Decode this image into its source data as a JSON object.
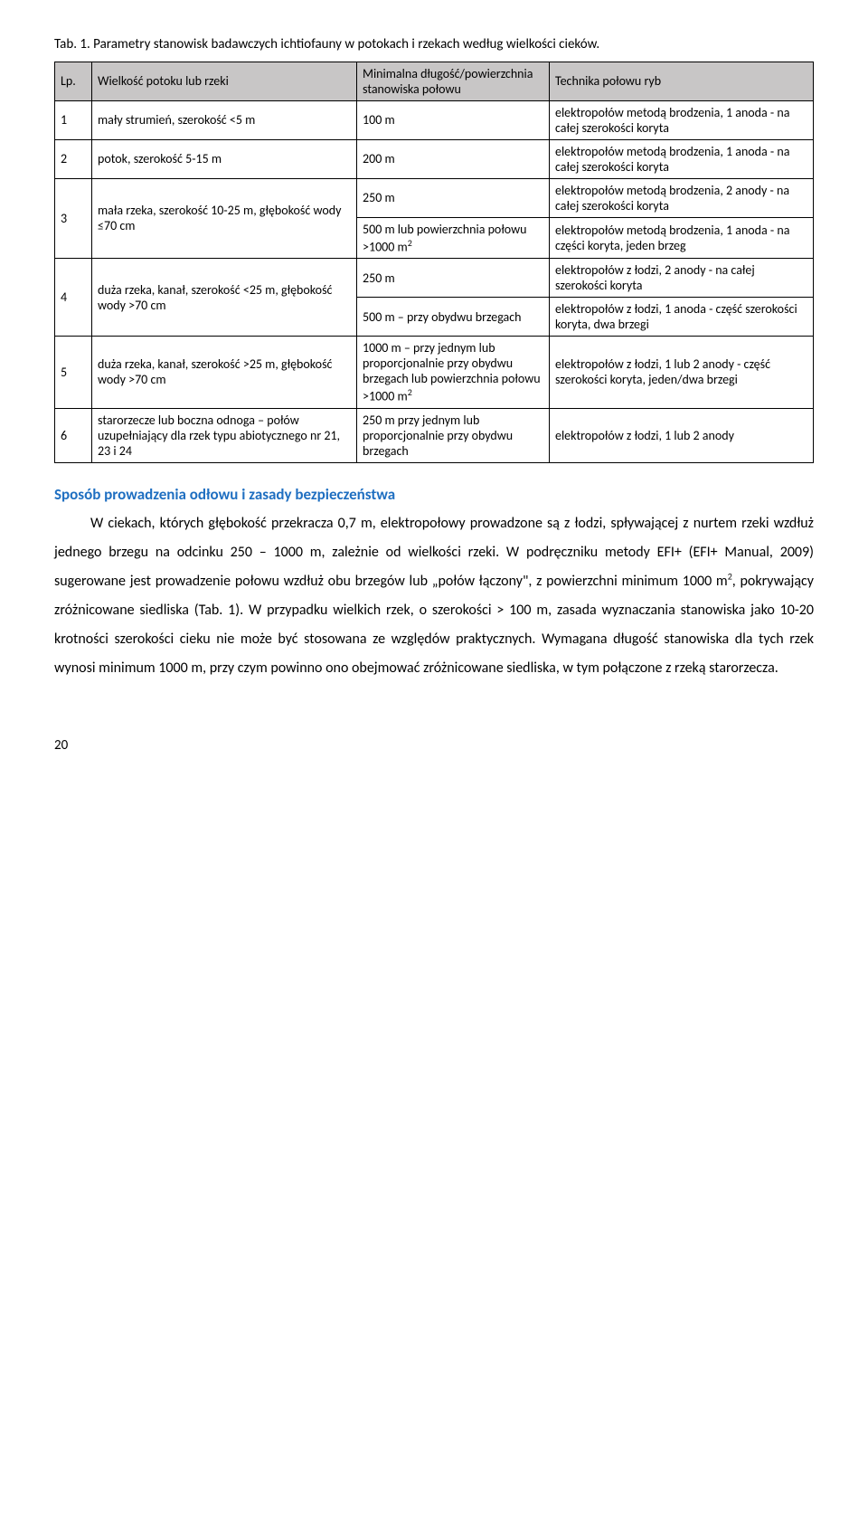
{
  "table_caption": "Tab. 1. Parametry stanowisk badawczych ichtiofauny w potokach i rzekach według wielkości cieków.",
  "headers": {
    "lp": "Lp.",
    "name": "Wielkość potoku lub rzeki",
    "min": "Minimalna długość/powierzchnia stanowiska połowu",
    "tech": "Technika połowu ryb"
  },
  "rows": {
    "r1": {
      "lp": "1",
      "name": "mały strumień, szerokość <5 m",
      "min": "100 m",
      "tech": "elektropołów metodą brodzenia, 1 anoda - na całej szerokości koryta"
    },
    "r2": {
      "lp": "2",
      "name": "potok, szerokość 5-15 m",
      "min": "200 m",
      "tech": "elektropołów metodą brodzenia, 1 anoda - na całej szerokości koryta"
    },
    "r3": {
      "lp": "3",
      "name": "mała rzeka, szerokość 10-25 m, głębokość wody ≤70 cm",
      "min_a": "250 m",
      "tech_a": "elektropołów metodą brodzenia, 2 anody - na całej szerokości koryta",
      "min_b_pre": "500 m lub powierzchnia połowu >1000 m",
      "min_b_sup": "2",
      "tech_b": "elektropołów metodą brodzenia, 1 anoda - na części koryta, jeden brzeg"
    },
    "r4": {
      "lp": "4",
      "name": "duża rzeka, kanał, szerokość <25 m, głębokość wody >70 cm",
      "min_a": "250 m",
      "tech_a": "elektropołów z łodzi, 2 anody - na całej szerokości koryta",
      "min_b": "500 m – przy obydwu brzegach",
      "tech_b": "elektropołów z łodzi, 1 anoda - część szerokości koryta, dwa brzegi"
    },
    "r5": {
      "lp": "5",
      "name": "duża rzeka, kanał, szerokość >25 m, głębokość wody >70 cm",
      "min_pre": "1000 m – przy jednym lub proporcjonalnie przy obydwu brzegach lub powierzchnia połowu >1000 m",
      "min_sup": "2",
      "tech": "elektropołów z łodzi, 1 lub 2 anody - część szerokości koryta, jeden/dwa brzegi"
    },
    "r6": {
      "lp": "6",
      "name": "starorzecze lub boczna odnoga – połów uzupełniający dla rzek typu abiotycznego nr 21, 23 i 24",
      "min": "250 m przy jednym lub proporcjonalnie przy obydwu brzegach",
      "tech": "elektropołów z łodzi, 1 lub 2 anody"
    }
  },
  "section_title": "Sposób prowadzenia odłowu i zasady bezpieczeństwa",
  "para_pre": "W ciekach, których głębokość przekracza 0,7 m, elektropołowy prowadzone są z łodzi, spływającej z nurtem rzeki wzdłuż jednego brzegu na odcinku 250 – 1000 m, zależnie od wielkości rzeki. W podręczniku metody EFI+ (EFI+ Manual, 2009) sugerowane jest prowadzenie połowu wzdłuż obu brzegów lub „połów łączony\", z powierzchni minimum 1000 m",
  "para_sup": "2",
  "para_post": ", pokrywający zróżnicowane siedliska (Tab. 1). W przypadku wielkich rzek, o szerokości > 100 m, zasada wyznaczania stanowiska jako 10-20 krotności szerokości cieku nie może być stosowana ze względów praktycznych. Wymagana długość stanowiska dla tych rzek wynosi minimum 1000 m, przy czym powinno ono obejmować zróżnicowane siedliska, w tym połączone z rzeką starorzecza.",
  "page_number": "20"
}
